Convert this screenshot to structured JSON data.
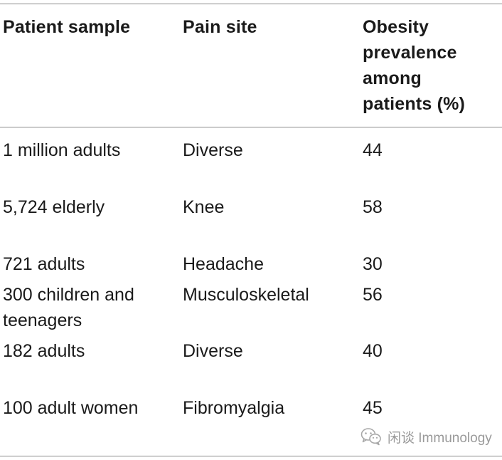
{
  "table": {
    "headers": {
      "patient_sample": "Patient sample",
      "pain_site": "Pain site",
      "obesity_line1": "Obesity",
      "obesity_line2": "prevalence",
      "obesity_line3": "among",
      "obesity_line4": "patients (%)"
    },
    "rows": [
      {
        "sample": "1 million adults",
        "sample_line2": "",
        "site": "Diverse",
        "prevalence": "44"
      },
      {
        "sample": "5,724 elderly",
        "sample_line2": "",
        "site": "Knee",
        "prevalence": "58"
      },
      {
        "sample": "721 adults",
        "sample_line2": "",
        "site": "Headache",
        "prevalence": "30"
      },
      {
        "sample": "300 children and",
        "sample_line2": "teenagers",
        "site": "Musculoskeletal",
        "prevalence": "56"
      },
      {
        "sample": "182 adults",
        "sample_line2": "",
        "site": "Diverse",
        "prevalence": "40"
      },
      {
        "sample": "100 adult women",
        "sample_line2": "",
        "site": "Fibromyalgia",
        "prevalence": "45"
      }
    ]
  },
  "watermark": {
    "icon": "wechat-icon",
    "text": "闲谈 Immunology"
  }
}
